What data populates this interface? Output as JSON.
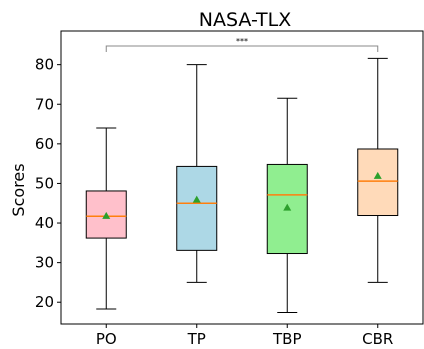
{
  "chart_data": {
    "type": "boxplot",
    "title": "NASA-TLX",
    "xlabel": "",
    "ylabel": "Scores",
    "ylim": [
      14.5,
      88.5
    ],
    "yticks": [
      20,
      30,
      40,
      50,
      60,
      70,
      80
    ],
    "grid": false,
    "categories": [
      "PO",
      "TP",
      "TBP",
      "CBR"
    ],
    "boxes": [
      {
        "category": "PO",
        "color": "#ffc0cb",
        "whisker_low": 18.3,
        "q1": 36.2,
        "median": 41.7,
        "q3": 48.1,
        "whisker_high": 64.0,
        "mean": 41.8
      },
      {
        "category": "TP",
        "color": "#add8e6",
        "whisker_low": 25.0,
        "q1": 33.1,
        "median": 45.0,
        "q3": 54.3,
        "whisker_high": 80.0,
        "mean": 45.9
      },
      {
        "category": "TBP",
        "color": "#90ee90",
        "whisker_low": 17.4,
        "q1": 32.3,
        "median": 47.1,
        "q3": 54.8,
        "whisker_high": 71.5,
        "mean": 43.9
      },
      {
        "category": "CBR",
        "color": "#ffdab9",
        "whisker_low": 25.0,
        "q1": 41.9,
        "median": 50.6,
        "q3": 58.7,
        "whisker_high": 81.6,
        "mean": 51.9
      }
    ],
    "median_color": "#ff7f0e",
    "mean_marker_color": "#2ca02c",
    "significance": {
      "from": "PO",
      "to": "CBR",
      "label": "***"
    }
  }
}
